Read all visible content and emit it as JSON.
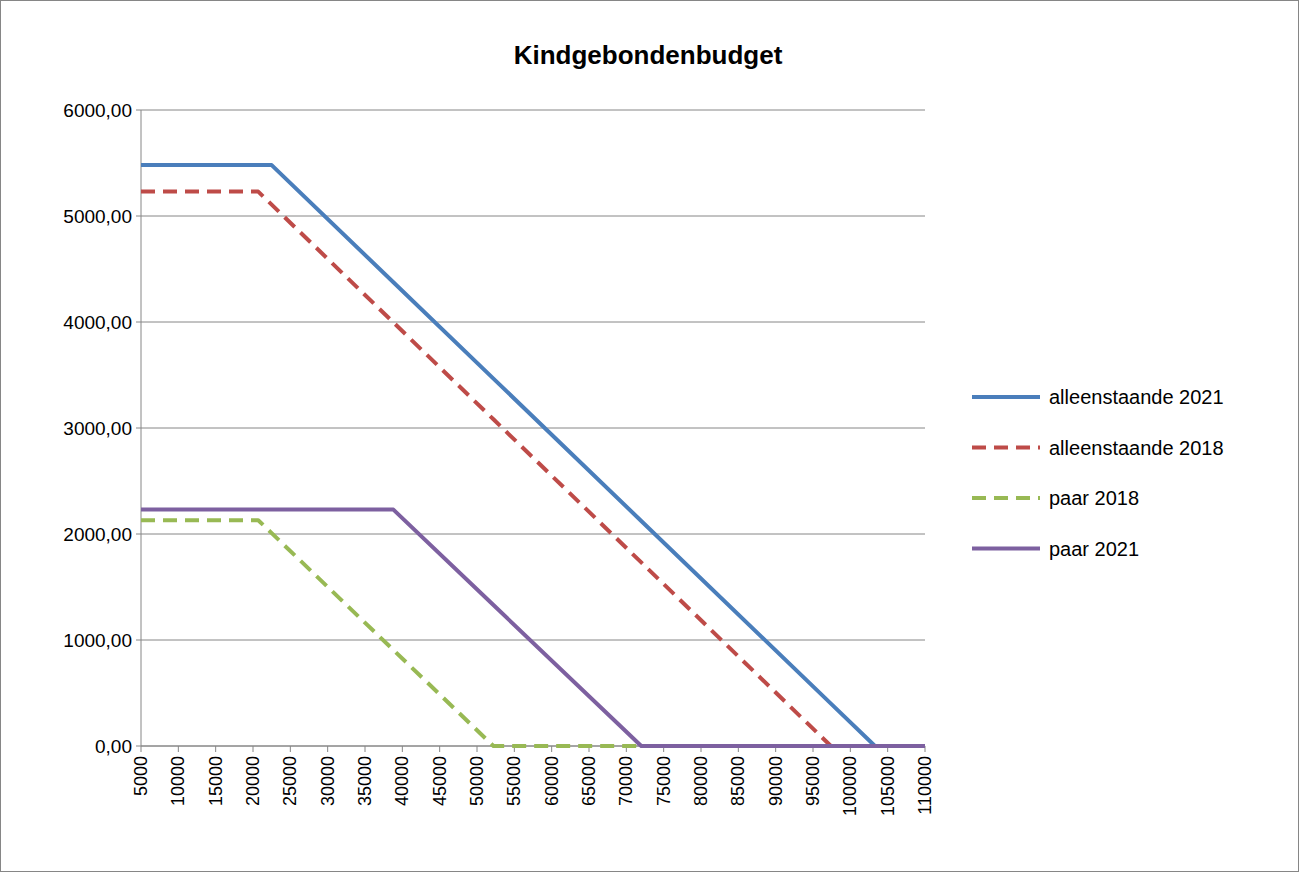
{
  "chart_data": {
    "type": "line",
    "title": "Kindgebondenbudget",
    "x": [
      5000,
      20700,
      22500,
      38800,
      52200,
      72000,
      97400,
      103300,
      110000
    ],
    "series": [
      {
        "name": "alleenstaande 2021",
        "color": "#4a7ebb",
        "line_style": "solid",
        "values": [
          5480,
          5480,
          5480,
          4375,
          3466,
          2123,
          400,
          0,
          0
        ]
      },
      {
        "name": "alleenstaande 2018",
        "color": "#be4b48",
        "line_style": "dashed",
        "values": [
          5230,
          5230,
          5107,
          3996,
          3082,
          1732,
          0,
          0,
          0
        ]
      },
      {
        "name": "paar 2018",
        "color": "#98b954",
        "line_style": "dashed",
        "values": [
          2130,
          2130,
          2008,
          906,
          0,
          0,
          0,
          0,
          0
        ]
      },
      {
        "name": "paar 2021",
        "color": "#7d60a0",
        "line_style": "solid",
        "values": [
          2230,
          2230,
          2230,
          2230,
          1330,
          0,
          0,
          0,
          0
        ]
      }
    ],
    "xlim": [
      5000,
      110000
    ],
    "xticks": [
      5000,
      10000,
      15000,
      20000,
      25000,
      30000,
      35000,
      40000,
      45000,
      50000,
      55000,
      60000,
      65000,
      70000,
      75000,
      80000,
      85000,
      90000,
      95000,
      100000,
      105000,
      110000
    ],
    "ylim": [
      0,
      6000
    ],
    "yticks": [
      {
        "value": 0,
        "label": "0,00"
      },
      {
        "value": 1000,
        "label": "1000,00"
      },
      {
        "value": 2000,
        "label": "2000,00"
      },
      {
        "value": 3000,
        "label": "3000,00"
      },
      {
        "value": 4000,
        "label": "4000,00"
      },
      {
        "value": 5000,
        "label": "5000,00"
      },
      {
        "value": 6000,
        "label": "6000,00"
      }
    ],
    "grid": true,
    "legend": "right"
  }
}
